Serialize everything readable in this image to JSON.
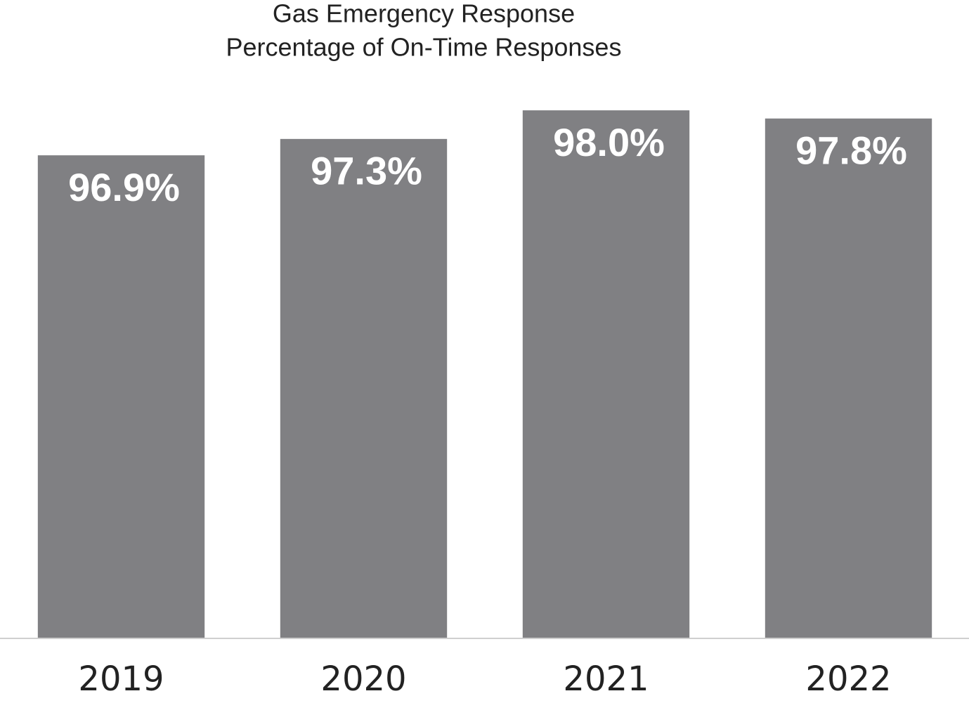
{
  "chart_data": {
    "type": "bar",
    "title": "Gas Emergency Response",
    "subtitle": "Percentage of On-Time Responses",
    "categories": [
      "2019",
      "2020",
      "2021",
      "2022"
    ],
    "values": [
      96.9,
      97.3,
      98.0,
      97.8
    ],
    "value_labels": [
      "96.9%",
      "97.3%",
      "98.0%",
      "97.8%"
    ],
    "color": "#808083",
    "ylim": [
      85.1,
      98.5
    ]
  }
}
